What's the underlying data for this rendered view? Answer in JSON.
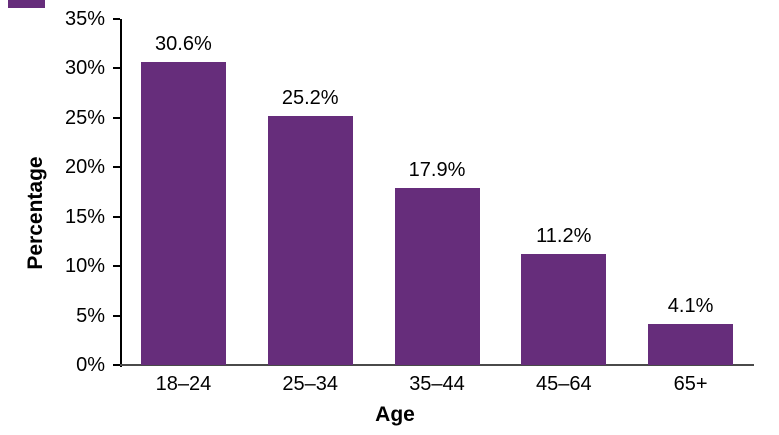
{
  "figure": {
    "background_color": "#ffffff",
    "corner_mark_color": "#662D7B"
  },
  "chart_data": {
    "type": "bar",
    "title": "",
    "categories": [
      "18–24",
      "25–34",
      "35–44",
      "45–64",
      "65+"
    ],
    "values": [
      30.6,
      25.2,
      17.9,
      11.2,
      4.1
    ],
    "data_labels": [
      "30.6%",
      "25.2%",
      "17.9%",
      "11.2%",
      "4.1%"
    ],
    "xlabel": "Age",
    "ylabel": "Percentage",
    "ylim": [
      0,
      35
    ],
    "ytick_step": 5,
    "ytick_labels": [
      "0%",
      "5%",
      "10%",
      "15%",
      "20%",
      "25%",
      "30%",
      "35%"
    ],
    "grid": false,
    "legend_position": "none",
    "bar_color": "#662D7B",
    "axis_color": "#000000",
    "x_axis_line_color": "#4a4a4a",
    "label_color": "#000000"
  }
}
